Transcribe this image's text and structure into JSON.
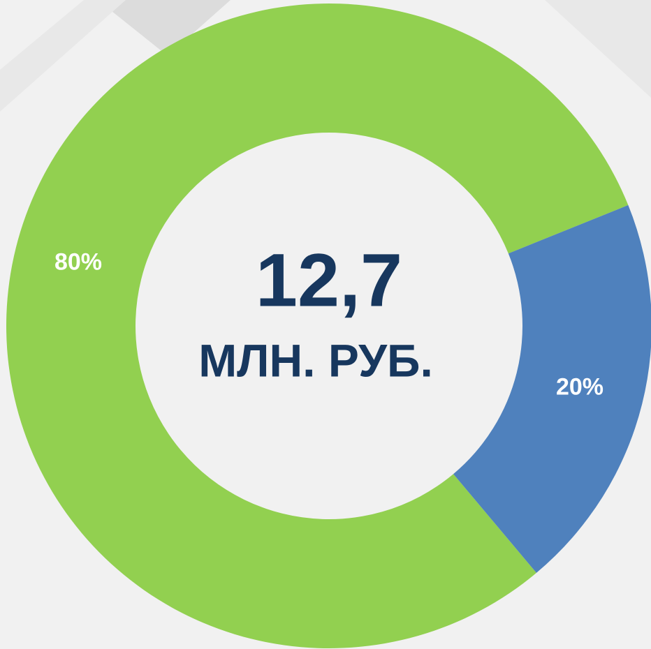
{
  "chart_data": {
    "type": "donut",
    "values": [
      80,
      20
    ],
    "value_labels": [
      "80%",
      "20%"
    ],
    "colors": [
      "#92d050",
      "#4f81bd"
    ],
    "center_value": "12,7",
    "center_label": "МЛН. РУБ."
  }
}
